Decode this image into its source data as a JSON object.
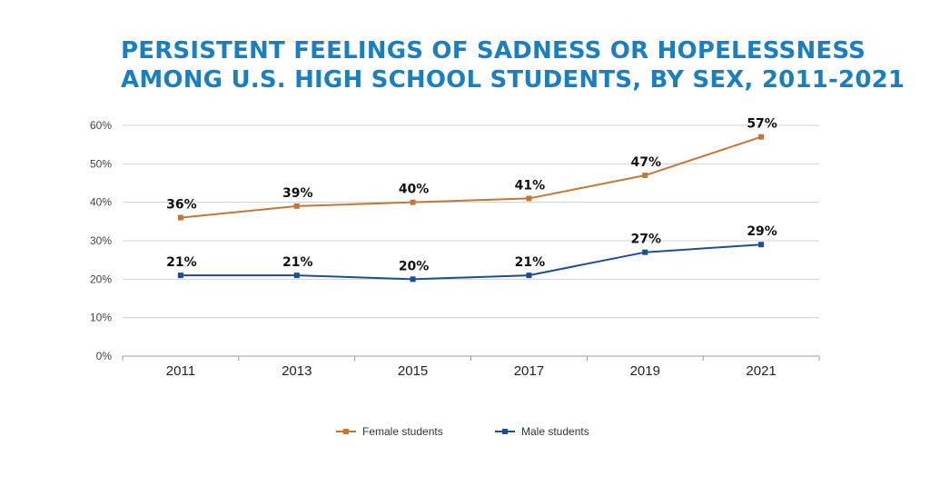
{
  "colors": {
    "title": "#1a7fbf",
    "female": "#c2773a",
    "male": "#1f4e8c",
    "grid": "#d0d0d0",
    "axis": "#999999"
  },
  "chart_data": {
    "type": "line",
    "title_lines": [
      "PERSISTENT FEELINGS OF SADNESS OR HOPELESSNESS",
      "AMONG U.S. HIGH SCHOOL STUDENTS, BY SEX, 2011-2021"
    ],
    "categories": [
      "2011",
      "2013",
      "2015",
      "2017",
      "2019",
      "2021"
    ],
    "y_ticks": [
      "0%",
      "10%",
      "20%",
      "30%",
      "40%",
      "50%",
      "60%"
    ],
    "ylim": [
      0,
      60
    ],
    "grid": true,
    "legend_position": "bottom-center",
    "series": [
      {
        "name": "Female students",
        "values": [
          36,
          39,
          40,
          41,
          47,
          57
        ],
        "labels": [
          "36%",
          "39%",
          "40%",
          "41%",
          "47%",
          "57%"
        ]
      },
      {
        "name": "Male students",
        "values": [
          21,
          21,
          20,
          21,
          27,
          29
        ],
        "labels": [
          "21%",
          "21%",
          "20%",
          "21%",
          "27%",
          "29%"
        ]
      }
    ]
  }
}
